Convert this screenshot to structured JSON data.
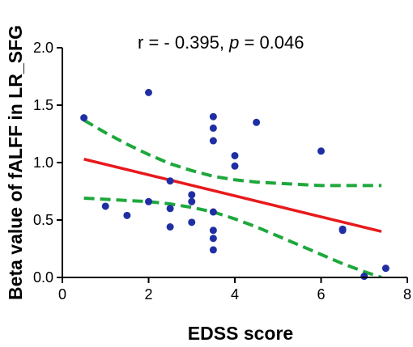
{
  "chart_data": {
    "type": "scatter",
    "xlabel": "EDSS score",
    "ylabel": "Beta value of fALFF in LR_SFG",
    "xlim": [
      0,
      8
    ],
    "ylim": [
      0,
      2.0
    ],
    "x_ticks": [
      "0",
      "2",
      "4",
      "6",
      "8"
    ],
    "y_ticks": [
      "0.0",
      "0.5",
      "1.0",
      "1.5",
      "2.0"
    ],
    "annotation": {
      "prefix": "r = - 0.395, ",
      "p_symbol": "p",
      "suffix": " = 0.046"
    },
    "grid": false,
    "colors": {
      "points": "#1f2fa3",
      "regression": "#e8191c",
      "confidence_band": "#1ea83c",
      "axes": "#000000"
    },
    "points": [
      {
        "x": 0.5,
        "y": 1.39
      },
      {
        "x": 1.0,
        "y": 0.62
      },
      {
        "x": 1.5,
        "y": 0.54
      },
      {
        "x": 2.0,
        "y": 1.61
      },
      {
        "x": 2.0,
        "y": 0.66
      },
      {
        "x": 2.5,
        "y": 0.84
      },
      {
        "x": 2.5,
        "y": 0.6
      },
      {
        "x": 2.5,
        "y": 0.44
      },
      {
        "x": 3.0,
        "y": 0.72
      },
      {
        "x": 3.0,
        "y": 0.66
      },
      {
        "x": 3.0,
        "y": 0.48
      },
      {
        "x": 3.5,
        "y": 1.4
      },
      {
        "x": 3.5,
        "y": 1.3
      },
      {
        "x": 3.5,
        "y": 1.19
      },
      {
        "x": 3.5,
        "y": 0.57
      },
      {
        "x": 3.5,
        "y": 0.41
      },
      {
        "x": 3.5,
        "y": 0.34
      },
      {
        "x": 3.5,
        "y": 0.24
      },
      {
        "x": 4.0,
        "y": 1.06
      },
      {
        "x": 4.0,
        "y": 0.97
      },
      {
        "x": 4.5,
        "y": 1.35
      },
      {
        "x": 6.0,
        "y": 1.1
      },
      {
        "x": 6.5,
        "y": 0.42
      },
      {
        "x": 6.5,
        "y": 0.41
      },
      {
        "x": 7.0,
        "y": 0.01
      },
      {
        "x": 7.5,
        "y": 0.08
      }
    ],
    "regression_line": {
      "x": [
        0.5,
        7.4
      ],
      "y": [
        1.03,
        0.4
      ]
    },
    "confidence_band": {
      "upper": {
        "x": [
          0.5,
          1.0,
          1.5,
          2.0,
          2.5,
          3.0,
          3.5,
          4.0,
          4.5,
          5.0,
          5.5,
          6.0,
          6.5,
          7.0,
          7.4
        ],
        "y": [
          1.37,
          1.26,
          1.16,
          1.07,
          0.99,
          0.93,
          0.88,
          0.85,
          0.83,
          0.82,
          0.81,
          0.8,
          0.8,
          0.8,
          0.8
        ]
      },
      "lower": {
        "x": [
          0.5,
          1.0,
          1.5,
          2.0,
          2.5,
          3.0,
          3.5,
          4.0,
          4.5,
          5.0,
          5.5,
          6.0,
          6.5,
          7.0,
          7.4
        ],
        "y": [
          0.69,
          0.68,
          0.67,
          0.66,
          0.64,
          0.61,
          0.57,
          0.51,
          0.44,
          0.36,
          0.28,
          0.2,
          0.12,
          0.05,
          0.0
        ]
      }
    }
  }
}
